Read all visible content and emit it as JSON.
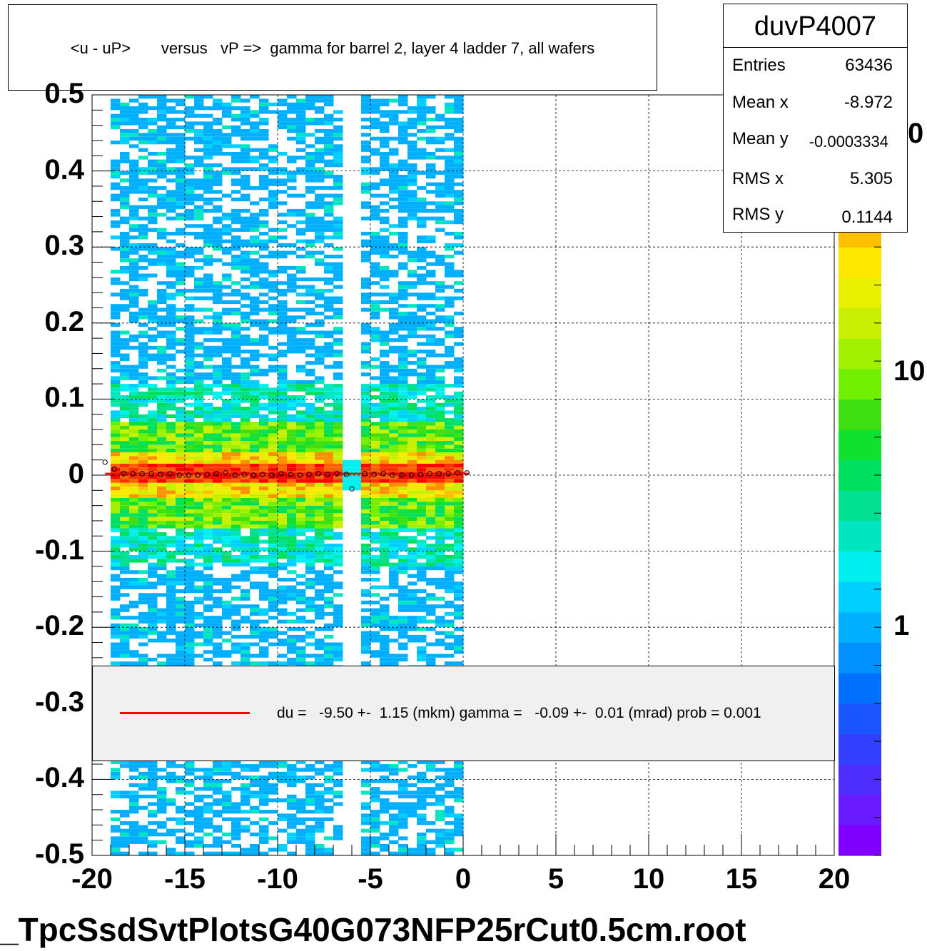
{
  "title": "<u - uP>       versus   vP =>  gamma for barrel 2, layer 4 ladder 7, all wafers",
  "stats": {
    "name": "duvP4007",
    "rows": [
      {
        "key": "Entries",
        "value": "63436"
      },
      {
        "key": "Mean x",
        "value": "-8.972"
      },
      {
        "key": "Mean y",
        "value": "-0.0003334"
      },
      {
        "key": "RMS x",
        "value": "5.305"
      },
      {
        "key": "RMS y",
        "value": "0.1144"
      }
    ]
  },
  "legend": {
    "text": "du =   -9.50 +-  1.15 (mkm) gamma =   -0.09 +-  0.01 (mrad) prob = 0.001",
    "line_color": "#ff0000"
  },
  "footer": "_TpcSsdSvtPlotsG40G073NFP25rCut0.5cm.root",
  "chart_data": {
    "type": "heatmap",
    "title": "<u - uP>       versus   vP =>  gamma for barrel 2, layer 4 ladder 7, all wafers",
    "xlim": [
      -20,
      20
    ],
    "ylim": [
      -0.5,
      0.5
    ],
    "x_ticks": [
      "-20",
      "-15",
      "-10",
      "-5",
      "0",
      "5",
      "10",
      "15",
      "20"
    ],
    "y_ticks": [
      "0.5",
      "0.4",
      "0.3",
      "0.2",
      "0.1",
      "0",
      "-0.1",
      "-0.2",
      "-0.3",
      "-0.4",
      "-0.5"
    ],
    "z_ticks": [
      "1",
      "10",
      "0"
    ],
    "z_scale": "log",
    "grid": true,
    "data_x_range": [
      -19,
      0
    ],
    "band_y": 0.0,
    "gap_x": -6.2,
    "profile_points": [
      {
        "x": -19.3,
        "y": 0.017
      },
      {
        "x": -18.8,
        "y": 0.008
      },
      {
        "x": -18.3,
        "y": 0.002
      },
      {
        "x": -17.8,
        "y": 0.002
      },
      {
        "x": -17.3,
        "y": 0.002
      },
      {
        "x": -16.8,
        "y": 0.002
      },
      {
        "x": -16.3,
        "y": 0.001
      },
      {
        "x": -15.8,
        "y": 0.002
      },
      {
        "x": -15.3,
        "y": 0.0
      },
      {
        "x": -14.8,
        "y": 0.0
      },
      {
        "x": -14.3,
        "y": 0.0
      },
      {
        "x": -13.8,
        "y": 0.001
      },
      {
        "x": -13.3,
        "y": 0.002
      },
      {
        "x": -12.8,
        "y": 0.003
      },
      {
        "x": -12.3,
        "y": 0.0
      },
      {
        "x": -11.8,
        "y": 0.001
      },
      {
        "x": -11.3,
        "y": 0.0
      },
      {
        "x": -10.8,
        "y": 0.001
      },
      {
        "x": -10.3,
        "y": 0.0
      },
      {
        "x": -9.8,
        "y": 0.002
      },
      {
        "x": -9.3,
        "y": 0.001
      },
      {
        "x": -8.8,
        "y": 0.0
      },
      {
        "x": -8.3,
        "y": 0.001
      },
      {
        "x": -7.8,
        "y": 0.002
      },
      {
        "x": -7.3,
        "y": 0.001
      },
      {
        "x": -6.8,
        "y": 0.002
      },
      {
        "x": -6.3,
        "y": 0.001
      },
      {
        "x": -6.0,
        "y": -0.018
      },
      {
        "x": -5.3,
        "y": 0.002
      },
      {
        "x": -4.8,
        "y": 0.001
      },
      {
        "x": -4.3,
        "y": 0.002
      },
      {
        "x": -3.8,
        "y": 0.0
      },
      {
        "x": -3.3,
        "y": 0.0
      },
      {
        "x": -2.8,
        "y": 0.0
      },
      {
        "x": -2.3,
        "y": 0.001
      },
      {
        "x": -1.8,
        "y": 0.002
      },
      {
        "x": -1.3,
        "y": 0.002
      },
      {
        "x": -0.8,
        "y": 0.002
      },
      {
        "x": -0.3,
        "y": 0.003
      },
      {
        "x": 0.2,
        "y": 0.003
      }
    ],
    "fit_line": {
      "x": [
        -19.3,
        0.3
      ],
      "y": [
        0.002,
        0.002
      ],
      "color": "#ff0000"
    },
    "palette": [
      "#7f00ff",
      "#6a1aff",
      "#4d2eff",
      "#3340ff",
      "#1a55ff",
      "#0070ff",
      "#0090ff",
      "#00b0ff",
      "#00d0ff",
      "#00f0f0",
      "#00e6c0",
      "#00e090",
      "#00e060",
      "#10e030",
      "#40e010",
      "#70f000",
      "#a0f000",
      "#c8f000",
      "#e8f000",
      "#ffe800",
      "#ffc000",
      "#ff9000",
      "#ff6000",
      "#ff3000",
      "#ff0000"
    ]
  }
}
